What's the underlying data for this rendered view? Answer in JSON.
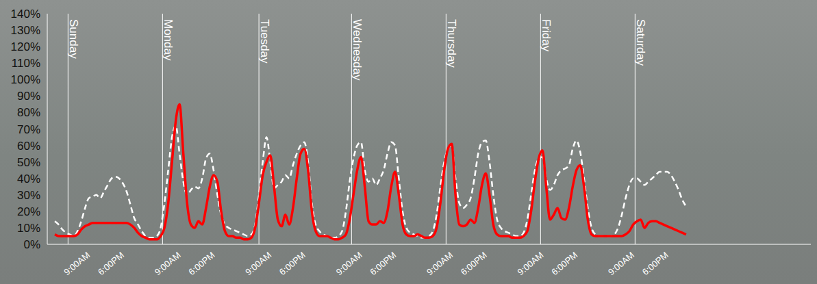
{
  "chart_data": {
    "type": "line",
    "x": [
      0,
      1,
      2,
      3,
      4,
      5,
      6,
      7,
      8,
      9,
      10,
      11,
      12,
      13,
      14,
      15,
      16,
      17,
      18,
      19,
      20,
      21,
      22,
      23,
      24,
      25,
      26,
      27,
      28,
      29,
      30,
      31,
      32,
      33,
      34,
      35,
      36,
      37,
      38,
      39,
      40,
      41,
      42,
      43,
      44,
      45,
      46,
      47,
      48,
      49,
      50,
      51,
      52,
      53,
      54,
      55,
      56,
      57,
      58,
      59,
      60,
      61,
      62,
      63,
      64,
      65,
      66,
      67,
      68,
      69,
      70,
      71,
      72,
      73,
      74,
      75,
      76,
      77,
      78,
      79,
      80,
      81,
      82,
      83,
      84,
      85,
      86,
      87,
      88,
      89,
      90,
      91,
      92,
      93,
      94,
      95,
      96,
      97,
      98,
      99,
      100,
      101,
      102,
      103,
      104,
      105,
      106,
      107,
      108,
      109,
      110,
      111,
      112,
      113,
      114,
      115,
      116,
      117,
      118,
      119,
      120,
      121,
      122,
      123,
      124,
      125,
      126,
      127,
      128,
      129,
      130,
      131,
      132,
      133,
      134,
      135,
      136,
      137,
      138,
      139,
      140,
      141,
      142,
      143,
      144,
      145,
      146,
      147,
      148,
      149,
      150,
      151,
      152,
      153,
      154,
      155,
      156,
      157,
      158,
      159,
      160,
      161,
      162,
      163,
      164,
      165,
      166,
      167
    ],
    "series": [
      {
        "color": "#ff0000",
        "line_style": "solid",
        "values": [
          6,
          5,
          5,
          5,
          5,
          5,
          6,
          9,
          11,
          12,
          13,
          13,
          13,
          13,
          13,
          13,
          13,
          13,
          13,
          13,
          12,
          10,
          7,
          5,
          4,
          3,
          3,
          3,
          5,
          10,
          25,
          50,
          75,
          85,
          55,
          25,
          12,
          10,
          14,
          12,
          22,
          35,
          42,
          38,
          20,
          8,
          5,
          5,
          4,
          4,
          3,
          3,
          4,
          10,
          25,
          42,
          50,
          54,
          35,
          15,
          11,
          18,
          12,
          22,
          40,
          55,
          58,
          45,
          20,
          8,
          5,
          5,
          5,
          4,
          3,
          3,
          4,
          6,
          15,
          30,
          45,
          53,
          35,
          14,
          12,
          12,
          14,
          13,
          20,
          35,
          44,
          30,
          12,
          6,
          5,
          5,
          6,
          5,
          4,
          4,
          5,
          10,
          25,
          45,
          58,
          61,
          30,
          12,
          11,
          12,
          15,
          13,
          22,
          36,
          43,
          30,
          12,
          6,
          5,
          5,
          5,
          4,
          4,
          4,
          5,
          8,
          20,
          38,
          52,
          57,
          35,
          15,
          18,
          22,
          16,
          15,
          22,
          35,
          45,
          48,
          35,
          15,
          6,
          5,
          5,
          5,
          5,
          5,
          5,
          5,
          5,
          6,
          8,
          12,
          14,
          15,
          10,
          13,
          14,
          14,
          13,
          12,
          11,
          10,
          9,
          8,
          7,
          6
        ]
      },
      {
        "color": "#ffffff",
        "line_style": "dashed",
        "values": [
          14,
          12,
          9,
          7,
          6,
          5,
          8,
          14,
          22,
          28,
          29,
          30,
          28,
          32,
          36,
          40,
          41,
          40,
          37,
          32,
          24,
          16,
          12,
          8,
          5,
          4,
          4,
          5,
          10,
          25,
          45,
          65,
          72,
          55,
          38,
          30,
          33,
          35,
          34,
          40,
          52,
          55,
          45,
          30,
          18,
          12,
          10,
          9,
          8,
          7,
          6,
          5,
          6,
          12,
          30,
          50,
          65,
          50,
          34,
          36,
          38,
          42,
          40,
          48,
          55,
          60,
          62,
          50,
          25,
          12,
          8,
          6,
          5,
          4,
          4,
          5,
          8,
          20,
          38,
          52,
          60,
          62,
          45,
          38,
          40,
          36,
          40,
          45,
          55,
          62,
          60,
          40,
          20,
          10,
          7,
          6,
          5,
          4,
          4,
          5,
          8,
          18,
          35,
          50,
          58,
          60,
          40,
          25,
          22,
          24,
          28,
          40,
          55,
          62,
          63,
          50,
          30,
          15,
          10,
          8,
          7,
          6,
          5,
          5,
          7,
          15,
          30,
          45,
          52,
          53,
          40,
          33,
          36,
          42,
          45,
          46,
          48,
          58,
          63,
          56,
          40,
          22,
          10,
          6,
          5,
          5,
          5,
          5,
          6,
          10,
          18,
          28,
          36,
          40,
          40,
          38,
          36,
          38,
          40,
          42,
          44,
          44,
          44,
          42,
          38,
          33,
          27,
          23
        ]
      }
    ],
    "xlim": [
      -2,
      200
    ],
    "xticks": [
      {
        "value": 9,
        "label": "9:00AM"
      },
      {
        "value": 18,
        "label": "6:00PM"
      },
      {
        "value": 33,
        "label": "9:00AM"
      },
      {
        "value": 42,
        "label": "6:00PM"
      },
      {
        "value": 57,
        "label": "9:00AM"
      },
      {
        "value": 66,
        "label": "6:00PM"
      },
      {
        "value": 81,
        "label": "9:00AM"
      },
      {
        "value": 90,
        "label": "6:00PM"
      },
      {
        "value": 105,
        "label": "9:00AM"
      },
      {
        "value": 114,
        "label": "6:00PM"
      },
      {
        "value": 129,
        "label": "9:00AM"
      },
      {
        "value": 138,
        "label": "6:00PM"
      },
      {
        "value": 153,
        "label": "9:00AM"
      },
      {
        "value": 162,
        "label": "6:00PM"
      }
    ],
    "ylim": [
      0,
      140
    ],
    "yticks": [
      {
        "value": 0,
        "label": "0%"
      },
      {
        "value": 10,
        "label": "10%"
      },
      {
        "value": 20,
        "label": "20%"
      },
      {
        "value": 30,
        "label": "30%"
      },
      {
        "value": 40,
        "label": "40%"
      },
      {
        "value": 50,
        "label": "50%"
      },
      {
        "value": 60,
        "label": "60%"
      },
      {
        "value": 70,
        "label": "70%"
      },
      {
        "value": 80,
        "label": "80%"
      },
      {
        "value": 90,
        "label": "90%"
      },
      {
        "value": 100,
        "label": "100%"
      },
      {
        "value": 110,
        "label": "110%"
      },
      {
        "value": 120,
        "label": "120%"
      },
      {
        "value": 130,
        "label": "130%"
      },
      {
        "value": 140,
        "label": "140%"
      }
    ],
    "annotations": [
      {
        "text": "Sunday",
        "x": 3.5
      },
      {
        "text": "Monday",
        "x": 28.5
      },
      {
        "text": "Tuesday",
        "x": 54
      },
      {
        "text": "Wednesday",
        "x": 78.5
      },
      {
        "text": "Thursday",
        "x": 103.5
      },
      {
        "text": "Friday",
        "x": 128.5
      },
      {
        "text": "Saturday",
        "x": 153.5
      }
    ],
    "grid": false
  }
}
